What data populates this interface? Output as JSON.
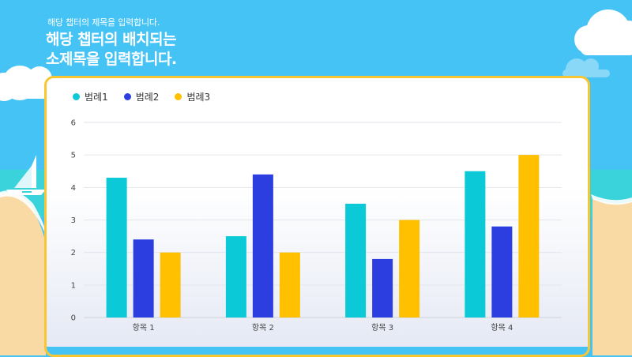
{
  "header": {
    "subtitle": "해당 챕터의 제목을 입력합니다.",
    "title_line1": "해당 챕터의 배치되는",
    "title_line2": "소제목을 입력합니다."
  },
  "colors": {
    "series1": "#0bc9d7",
    "series2": "#2c3ee0",
    "series3": "#ffc000",
    "sky": "#45c3f5",
    "sea": "#3ad3dc",
    "sand": "#f9d9a4",
    "card_border": "#f7c632"
  },
  "chart_data": {
    "type": "bar",
    "categories": [
      "항목 1",
      "항목 2",
      "항목 3",
      "항목 4"
    ],
    "series": [
      {
        "name": "범례1",
        "values": [
          4.3,
          2.5,
          3.5,
          4.5
        ]
      },
      {
        "name": "범례2",
        "values": [
          2.4,
          4.4,
          1.8,
          2.8
        ]
      },
      {
        "name": "범례3",
        "values": [
          2,
          2,
          3,
          5
        ]
      }
    ],
    "ylim": [
      0,
      6
    ],
    "yticks": [
      0,
      1,
      2,
      3,
      4,
      5,
      6
    ],
    "grid": true,
    "legend_position": "top-left"
  }
}
